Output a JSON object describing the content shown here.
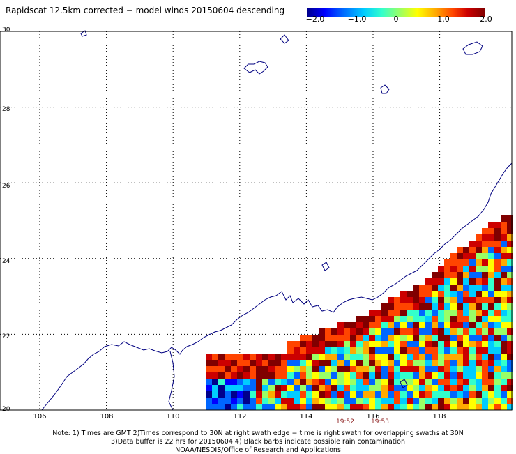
{
  "title": "Rapidscat 12.5km corrected − model winds 20150604 descending",
  "colorbar": {
    "labels": [
      "−2.0",
      "−1.0",
      "0",
      "1.0",
      "2.0"
    ],
    "values": [
      -2.0,
      -1.0,
      0,
      1.0,
      2.0
    ],
    "colors": [
      "#00008b",
      "#0000ff",
      "#0066ff",
      "#00ccff",
      "#33ffcc",
      "#99ff66",
      "#ffff00",
      "#ffaa00",
      "#ff4400",
      "#cc0000",
      "#800000"
    ]
  },
  "map": {
    "lon_range": [
      105,
      120
    ],
    "lat_range": [
      20,
      30
    ],
    "lat_labels": [
      "30",
      "28",
      "26",
      "24",
      "22",
      "20"
    ],
    "lon_labels": [
      "106",
      "108",
      "110",
      "112",
      "114",
      "116",
      "118"
    ],
    "grid_lons": [
      106,
      108,
      110,
      112,
      114,
      116,
      118
    ],
    "grid_lats": [
      22,
      24,
      26,
      28
    ],
    "coast_color": "#000080",
    "swath_times": [
      {
        "label": "19:52",
        "lon": 114.8
      },
      {
        "label": "19:53",
        "lon": 116.0
      }
    ]
  },
  "notes": [
    "Note: 1) Times are GMT 2)Times correspond to 30N at right swath edge − time is right swath for overlapping swaths at 30N",
    "3)Data buffer is 22 hrs for 20150604 4) Black barbs indicate possible rain contamination",
    "NOAA/NESDIS/Office of Research and Applications"
  ]
}
